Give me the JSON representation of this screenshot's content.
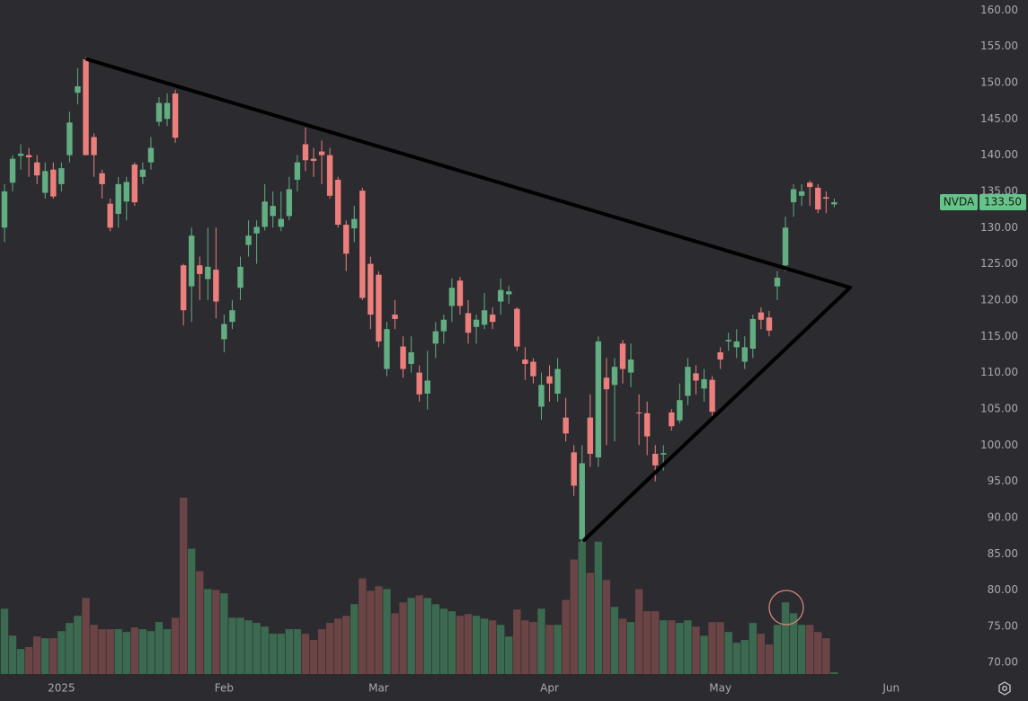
{
  "chart_data": {
    "type": "candlestick",
    "open": [
      130,
      136.2,
      139.9,
      140,
      139,
      134.8,
      138,
      136,
      140,
      148.6,
      153.2,
      142.5,
      137.5,
      133.3,
      131.9,
      133.6,
      138.7,
      137,
      139,
      144.6,
      145,
      148.5,
      124.8,
      121.9,
      124.8,
      122.9,
      124.2,
      114.6,
      117,
      121.7,
      127.6,
      129.2,
      130.1,
      131.6,
      130.1,
      131.6,
      136.6,
      141.5,
      139.5,
      140.5,
      140,
      136.6,
      130.4,
      129.9,
      135.1,
      125,
      123.5,
      110.5,
      118,
      113.6,
      111.2,
      110,
      107.1,
      114,
      115.7,
      119.2,
      122.7,
      118.2,
      116.3,
      116.6,
      118,
      119.8,
      120.8,
      118.8,
      111.8,
      111.5,
      105.3,
      109.5,
      107.1,
      103.8,
      99,
      87,
      103.8,
      98.3,
      109.3,
      108.3,
      114,
      110,
      104.5,
      104.4,
      98.8,
      98.7,
      104.5,
      103.4,
      106.8,
      109.9,
      107.8,
      109,
      112.8,
      114.3,
      113.5,
      111.5,
      113.3,
      118.3,
      117.6,
      121.9,
      124.8,
      133.5,
      134.4,
      136.2,
      135.5,
      134.2,
      133.2
    ],
    "high": [
      136,
      140,
      141.5,
      141,
      140,
      139,
      139,
      139,
      146,
      152,
      153.5,
      143,
      138,
      134,
      137,
      137,
      139,
      139,
      142.5,
      148,
      148.5,
      149,
      125,
      130,
      126,
      130,
      130,
      118,
      120,
      126,
      131,
      131,
      136,
      135,
      135,
      137,
      140,
      143.8,
      141,
      142,
      141,
      137,
      131,
      133,
      135.5,
      126,
      124,
      117,
      120,
      115,
      115,
      111,
      113,
      117,
      118,
      123,
      123.2,
      120,
      118,
      121,
      119,
      123,
      122,
      119,
      113.5,
      112,
      110,
      111,
      112,
      106.5,
      100,
      100,
      107,
      115,
      112,
      112,
      114.5,
      114,
      107,
      106,
      100,
      100,
      105,
      108.5,
      112,
      111,
      110.5,
      109.5,
      113.5,
      115.5,
      116,
      115,
      118,
      119,
      118.5,
      124,
      131.5,
      136,
      136,
      136.5,
      136,
      135,
      134
    ],
    "low": [
      128,
      135,
      138,
      137,
      136,
      134,
      134,
      135,
      139,
      147,
      140,
      137,
      134,
      129.5,
      130,
      131,
      133,
      136,
      138,
      144,
      144,
      141.7,
      116.5,
      117,
      120,
      120,
      117.5,
      112.8,
      116,
      120,
      126,
      125,
      129.6,
      130,
      129.5,
      131,
      135,
      137.8,
      137,
      136,
      134,
      130,
      124,
      128,
      120,
      116,
      113.5,
      109.5,
      116,
      109.3,
      110,
      106,
      104.9,
      112,
      114,
      117,
      118,
      114,
      114,
      116,
      116,
      118,
      119.5,
      113,
      109,
      108.5,
      103.5,
      106,
      106,
      100.5,
      93,
      86.6,
      97,
      97,
      100,
      100.5,
      108.5,
      108,
      100,
      98.6,
      95,
      96.5,
      102,
      103,
      105.5,
      107,
      106,
      104,
      110.5,
      113,
      112,
      110.5,
      112,
      116,
      115,
      120,
      124,
      131.5,
      133,
      133,
      132,
      132,
      132.8
    ],
    "close": [
      135,
      139.5,
      140.2,
      139.7,
      137.2,
      137.8,
      134.3,
      138.2,
      144.5,
      149.5,
      140,
      140,
      136,
      130,
      136,
      136.3,
      133.5,
      138,
      141,
      147.2,
      147.2,
      142.4,
      118.6,
      128.9,
      123.6,
      124.6,
      119.8,
      116.7,
      118.6,
      124.6,
      128.9,
      130.1,
      133.6,
      133,
      131.2,
      135.3,
      139,
      139.3,
      139.2,
      140,
      134.4,
      130.4,
      126.4,
      131.2,
      120.3,
      118,
      114.3,
      116,
      117.4,
      110.5,
      112.8,
      107,
      108.9,
      115.7,
      117.3,
      121.7,
      119.2,
      115.5,
      117.3,
      118.6,
      117,
      121.4,
      121.2,
      113.6,
      111.2,
      109.5,
      108.3,
      108.5,
      110.5,
      101.6,
      94.4,
      97.5,
      98.8,
      114.3,
      107.7,
      110.8,
      110.5,
      111.8,
      104.4,
      101.2,
      97.2,
      98.9,
      102.6,
      106.2,
      110.8,
      108.9,
      109.1,
      104.6,
      111.8,
      114.5,
      114.3,
      113.5,
      117.4,
      117.3,
      115.8,
      123.1,
      130,
      135.3,
      135,
      135.6,
      132.5,
      134,
      133.5
    ],
    "volume": [
      303,
      178,
      116,
      125,
      174,
      166,
      166,
      199,
      237,
      270,
      353,
      228,
      208,
      208,
      208,
      195,
      216,
      208,
      199,
      241,
      208,
      261,
      818,
      581,
      477,
      394,
      390,
      374,
      261,
      261,
      249,
      237,
      220,
      187,
      187,
      208,
      208,
      187,
      158,
      208,
      237,
      257,
      270,
      324,
      444,
      386,
      407,
      394,
      282,
      332,
      353,
      365,
      353,
      324,
      303,
      291,
      270,
      278,
      270,
      257,
      249,
      228,
      174,
      299,
      249,
      241,
      303,
      228,
      228,
      344,
      531,
      614,
      469,
      614,
      436,
      311,
      257,
      241,
      394,
      291,
      291,
      249,
      249,
      237,
      249,
      220,
      178,
      241,
      241,
      195,
      145,
      158,
      237,
      187,
      137,
      228,
      332,
      282,
      228,
      228,
      195,
      166,
      8
    ],
    "up_color": "#62ad82",
    "down_color": "#ec7f7c",
    "volume_up_color": "#3b6a50",
    "volume_down_color": "#6b4446",
    "xlim": [
      -0.55,
      119.3
    ],
    "xticks": [
      {
        "value": 7,
        "label": "2025"
      },
      {
        "value": 27,
        "label": "Feb"
      },
      {
        "value": 46,
        "label": "Mar"
      },
      {
        "value": 67,
        "label": "Apr"
      },
      {
        "value": 88,
        "label": "May"
      },
      {
        "value": 109,
        "label": "Jun"
      }
    ],
    "ylim": [
      64.7,
      161.4
    ],
    "yticks": [
      {
        "value": 70,
        "label": "70.00"
      },
      {
        "value": 75,
        "label": "75.00"
      },
      {
        "value": 80,
        "label": "80.00"
      },
      {
        "value": 85,
        "label": "85.00"
      },
      {
        "value": 90,
        "label": "90.00"
      },
      {
        "value": 95,
        "label": "95.00"
      },
      {
        "value": 100,
        "label": "100.00"
      },
      {
        "value": 105,
        "label": "105.00"
      },
      {
        "value": 110,
        "label": "110.00"
      },
      {
        "value": 115,
        "label": "115.00"
      },
      {
        "value": 120,
        "label": "120.00"
      },
      {
        "value": 125,
        "label": "125.00"
      },
      {
        "value": 130,
        "label": "130.00"
      },
      {
        "value": 135,
        "label": "135.00"
      },
      {
        "value": 140,
        "label": "140.00"
      },
      {
        "value": 145,
        "label": "145.00"
      },
      {
        "value": 150,
        "label": "150.00"
      },
      {
        "value": 155,
        "label": "155.00"
      },
      {
        "value": 160,
        "label": "160.00"
      }
    ],
    "vlim": [
      0,
      850
    ],
    "symbol": "NVDA",
    "last_price": {
      "value": 133.5,
      "label": "133.50"
    }
  }
}
